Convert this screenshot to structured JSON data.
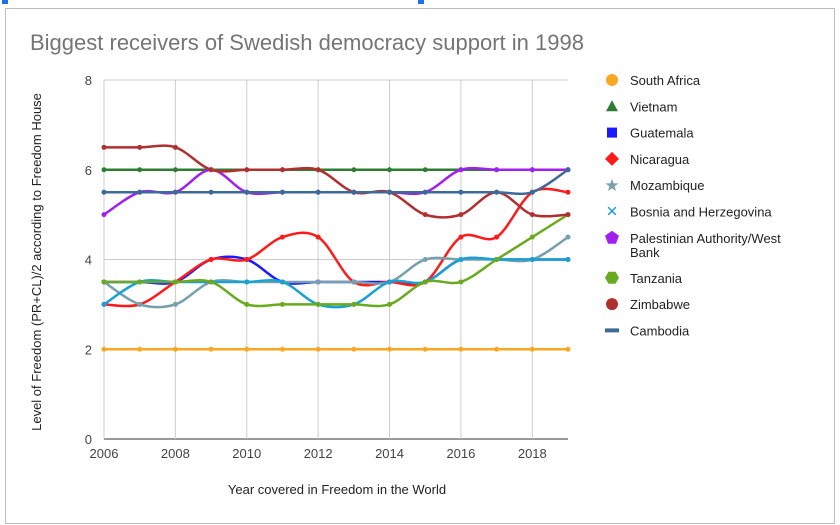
{
  "chart_data": {
    "type": "line",
    "title": "Biggest receivers of Swedish democracy support in 1998",
    "xlabel": "Year covered in Freedom in the World",
    "ylabel": "Level of Freedom (PR+CL)/2 according to Freedom House",
    "x": [
      2006,
      2007,
      2008,
      2009,
      2010,
      2011,
      2012,
      2013,
      2014,
      2015,
      2016,
      2017,
      2018,
      2019
    ],
    "xticks": [
      "2006",
      "2008",
      "2010",
      "2012",
      "2014",
      "2016",
      "2018"
    ],
    "yticks": [
      "0",
      "2",
      "4",
      "6",
      "8"
    ],
    "ylim": [
      0,
      8
    ],
    "xlim": [
      2006,
      2019
    ],
    "grid": true,
    "legend": "right",
    "smooth": true,
    "series": [
      {
        "name": "South Africa",
        "color": "#f9a825",
        "marker": "circle",
        "values": [
          2,
          2,
          2,
          2,
          2,
          2,
          2,
          2,
          2,
          2,
          2,
          2,
          2,
          2
        ]
      },
      {
        "name": "Vietnam",
        "color": "#2e7d32",
        "marker": "triangle",
        "values": [
          6,
          6,
          6,
          6,
          6,
          6,
          6,
          6,
          6,
          6,
          6,
          6,
          6,
          6
        ]
      },
      {
        "name": "Guatemala",
        "color": "#1a1aff",
        "marker": "square",
        "values": [
          3.5,
          3.5,
          3.5,
          4,
          4,
          3.5,
          3.5,
          3.5,
          3.5,
          3.5,
          4,
          4,
          4,
          4
        ]
      },
      {
        "name": "Nicaragua",
        "color": "#ff1a1a",
        "marker": "diamond",
        "values": [
          3,
          3,
          3.5,
          4,
          4,
          4.5,
          4.5,
          3.5,
          3.5,
          3.5,
          4.5,
          4.5,
          5.5,
          5.5
        ]
      },
      {
        "name": "Mozambique",
        "color": "#78a0ac",
        "marker": "star",
        "values": [
          3.5,
          3,
          3,
          3.5,
          3.5,
          3.5,
          3.5,
          3.5,
          3.5,
          4,
          4,
          4,
          4,
          4.5
        ]
      },
      {
        "name": "Bosnia and Herzegovina",
        "color": "#1ba1d1",
        "marker": "x",
        "values": [
          3,
          3.5,
          3.5,
          3.5,
          3.5,
          3.5,
          3,
          3,
          3.5,
          3.5,
          4,
          4,
          4,
          4
        ]
      },
      {
        "name": "Palestinian Authority/West Bank",
        "color": "#a020f0",
        "marker": "pentagon",
        "values": [
          5,
          5.5,
          5.5,
          6,
          5.5,
          5.5,
          5.5,
          5.5,
          5.5,
          5.5,
          6,
          6,
          6,
          6
        ]
      },
      {
        "name": "Tanzania",
        "color": "#6aaa1e",
        "marker": "hexagon",
        "values": [
          3.5,
          3.5,
          3.5,
          3.5,
          3,
          3,
          3,
          3,
          3,
          3.5,
          3.5,
          4,
          4.5,
          5
        ]
      },
      {
        "name": "Zimbabwe",
        "color": "#b03030",
        "marker": "circle",
        "values": [
          6.5,
          6.5,
          6.5,
          6,
          6,
          6,
          6,
          5.5,
          5.5,
          5,
          5,
          5.5,
          5,
          5
        ]
      },
      {
        "name": "Cambodia",
        "color": "#3d6a99",
        "marker": "line",
        "values": [
          5.5,
          5.5,
          5.5,
          5.5,
          5.5,
          5.5,
          5.5,
          5.5,
          5.5,
          5.5,
          5.5,
          5.5,
          5.5,
          6
        ]
      }
    ]
  }
}
